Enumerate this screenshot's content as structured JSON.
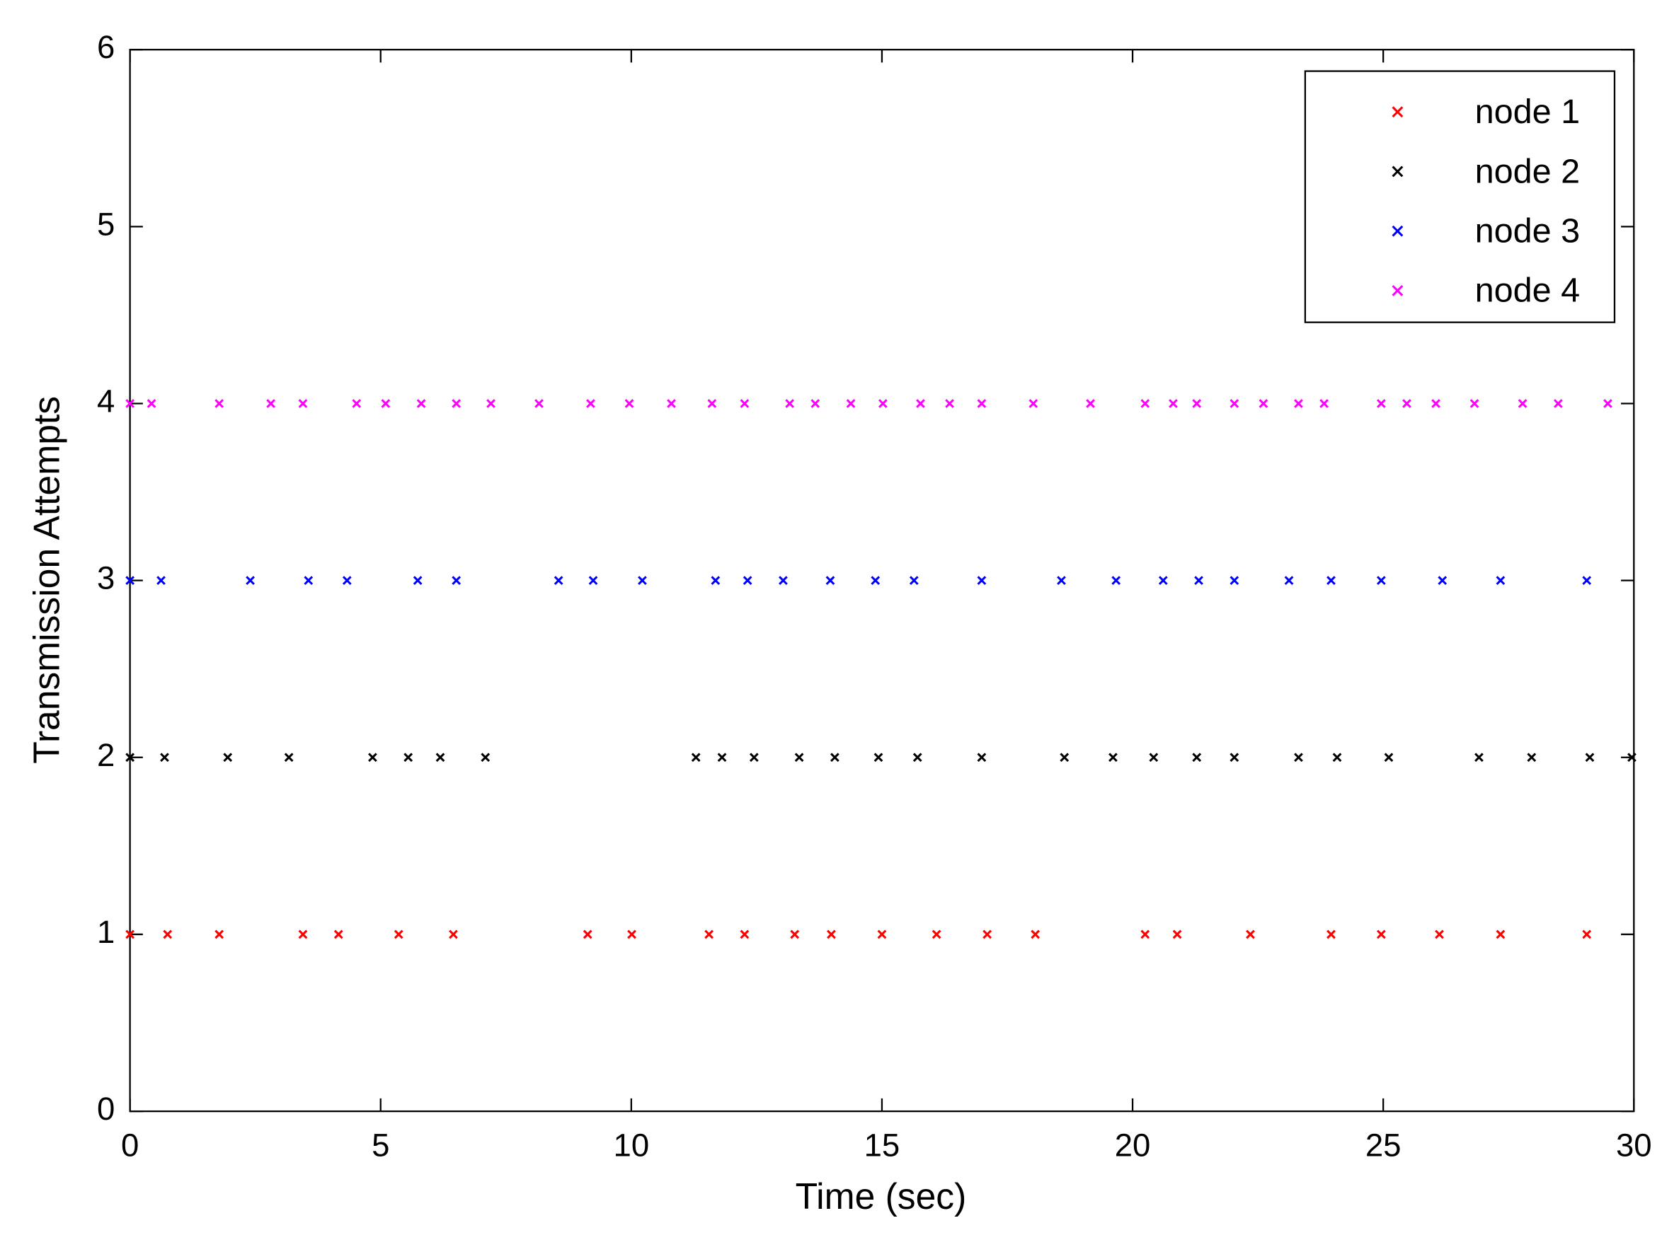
{
  "chart_data": {
    "type": "scatter",
    "xlabel": "Time (sec)",
    "ylabel": "Transmission Attempts",
    "xlim": [
      0,
      30
    ],
    "ylim": [
      0,
      6
    ],
    "xticks": [
      0,
      5,
      10,
      15,
      20,
      25,
      30
    ],
    "yticks": [
      0,
      1,
      2,
      3,
      4,
      5,
      6
    ],
    "legend": "upper right",
    "marker": "x",
    "series": [
      {
        "name": "node 1",
        "color": "#ff0000",
        "x": [
          0,
          0.75,
          1.78,
          3.45,
          4.16,
          5.36,
          6.45,
          9.13,
          10.01,
          11.55,
          12.26,
          13.26,
          13.99,
          15.0,
          16.09,
          17.1,
          18.06,
          20.25,
          20.89,
          22.35,
          23.96,
          24.96,
          26.12,
          27.34,
          29.06
        ],
        "values": [
          1,
          1,
          1,
          1,
          1,
          1,
          1,
          1,
          1,
          1,
          1,
          1,
          1,
          1,
          1,
          1,
          1,
          1,
          1,
          1,
          1,
          1,
          1,
          1,
          1
        ]
      },
      {
        "name": "node 2",
        "color": "#000000",
        "x": [
          0,
          0.69,
          1.95,
          3.17,
          4.84,
          5.55,
          6.19,
          7.09,
          11.29,
          11.81,
          12.45,
          13.35,
          14.06,
          14.93,
          15.71,
          16.99,
          18.64,
          19.61,
          20.42,
          21.28,
          22.03,
          23.31,
          24.08,
          25.11,
          26.91,
          27.96,
          29.12,
          29.96
        ],
        "values": [
          2,
          2,
          2,
          2,
          2,
          2,
          2,
          2,
          2,
          2,
          2,
          2,
          2,
          2,
          2,
          2,
          2,
          2,
          2,
          2,
          2,
          2,
          2,
          2,
          2,
          2,
          2,
          2
        ]
      },
      {
        "name": "node 3",
        "color": "#0000ff",
        "x": [
          0,
          0.62,
          2.4,
          3.56,
          4.33,
          5.74,
          6.51,
          8.55,
          9.24,
          10.22,
          11.68,
          12.32,
          13.03,
          13.97,
          14.87,
          15.64,
          16.99,
          18.58,
          19.67,
          20.61,
          21.32,
          22.03,
          23.12,
          23.96,
          24.96,
          26.18,
          27.34,
          29.06
        ],
        "values": [
          3,
          3,
          3,
          3,
          3,
          3,
          3,
          3,
          3,
          3,
          3,
          3,
          3,
          3,
          3,
          3,
          3,
          3,
          3,
          3,
          3,
          3,
          3,
          3,
          3,
          3,
          3,
          3
        ]
      },
      {
        "name": "node 4",
        "color": "#ff00ff",
        "x": [
          0,
          0.43,
          1.78,
          2.81,
          3.45,
          4.52,
          5.1,
          5.81,
          6.51,
          7.2,
          8.16,
          9.19,
          9.96,
          10.8,
          11.61,
          12.26,
          13.16,
          13.67,
          14.38,
          15.02,
          15.77,
          16.35,
          16.99,
          18.02,
          19.16,
          20.25,
          20.81,
          21.28,
          22.03,
          22.61,
          23.31,
          23.82,
          24.96,
          25.47,
          26.05,
          26.82,
          27.78,
          28.49,
          29.48
        ],
        "values": [
          4,
          4,
          4,
          4,
          4,
          4,
          4,
          4,
          4,
          4,
          4,
          4,
          4,
          4,
          4,
          4,
          4,
          4,
          4,
          4,
          4,
          4,
          4,
          4,
          4,
          4,
          4,
          4,
          4,
          4,
          4,
          4,
          4,
          4,
          4,
          4,
          4,
          4,
          4
        ]
      }
    ]
  }
}
